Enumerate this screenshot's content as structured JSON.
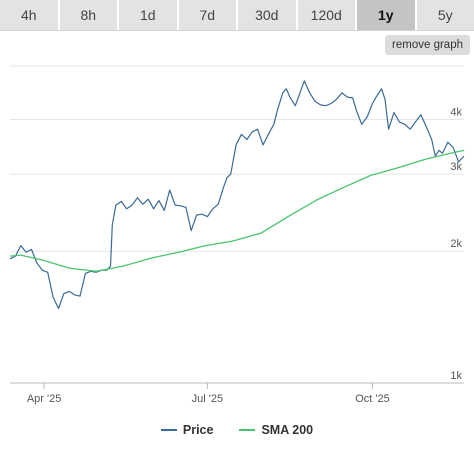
{
  "tabs": [
    {
      "label": "4h",
      "active": false
    },
    {
      "label": "8h",
      "active": false
    },
    {
      "label": "1d",
      "active": false
    },
    {
      "label": "7d",
      "active": false
    },
    {
      "label": "30d",
      "active": false
    },
    {
      "label": "120d",
      "active": false
    },
    {
      "label": "1y",
      "active": true
    },
    {
      "label": "5y",
      "active": false
    }
  ],
  "remove_graph_label": "remove graph",
  "chart_data": {
    "type": "line",
    "x_range": [
      "2025-03-13",
      "2025-11-21"
    ],
    "x_ticks": [
      {
        "date": "2025-04-01",
        "label": "Apr '25"
      },
      {
        "date": "2025-07-01",
        "label": "Jul '25"
      },
      {
        "date": "2025-10-01",
        "label": "Oct '25"
      }
    ],
    "y_axis": {
      "scale": "log",
      "range": [
        1000,
        5300
      ]
    },
    "y_ticks": [
      {
        "value": 1000,
        "label": "1k"
      },
      {
        "value": 2000,
        "label": "2k"
      },
      {
        "value": 3000,
        "label": "3k"
      },
      {
        "value": 4000,
        "label": "4k"
      }
    ],
    "grid": true,
    "legend_position": "bottom",
    "series": [
      {
        "name": "Price",
        "color": "#3b6a96",
        "points": [
          [
            "2025-03-13",
            1920
          ],
          [
            "2025-03-16",
            1950
          ],
          [
            "2025-03-19",
            2060
          ],
          [
            "2025-03-22",
            1990
          ],
          [
            "2025-03-25",
            2020
          ],
          [
            "2025-03-28",
            1880
          ],
          [
            "2025-03-31",
            1810
          ],
          [
            "2025-04-03",
            1790
          ],
          [
            "2025-04-06",
            1570
          ],
          [
            "2025-04-09",
            1480
          ],
          [
            "2025-04-12",
            1600
          ],
          [
            "2025-04-15",
            1620
          ],
          [
            "2025-04-18",
            1590
          ],
          [
            "2025-04-21",
            1580
          ],
          [
            "2025-04-24",
            1780
          ],
          [
            "2025-04-27",
            1800
          ],
          [
            "2025-04-30",
            1790
          ],
          [
            "2025-05-03",
            1810
          ],
          [
            "2025-05-06",
            1810
          ],
          [
            "2025-05-08",
            1850
          ],
          [
            "2025-05-09",
            2300
          ],
          [
            "2025-05-11",
            2550
          ],
          [
            "2025-05-14",
            2600
          ],
          [
            "2025-05-17",
            2500
          ],
          [
            "2025-05-20",
            2550
          ],
          [
            "2025-05-23",
            2650
          ],
          [
            "2025-05-26",
            2560
          ],
          [
            "2025-05-29",
            2630
          ],
          [
            "2025-06-01",
            2500
          ],
          [
            "2025-06-04",
            2610
          ],
          [
            "2025-06-07",
            2480
          ],
          [
            "2025-06-10",
            2760
          ],
          [
            "2025-06-13",
            2550
          ],
          [
            "2025-06-16",
            2540
          ],
          [
            "2025-06-19",
            2520
          ],
          [
            "2025-06-22",
            2230
          ],
          [
            "2025-06-25",
            2420
          ],
          [
            "2025-06-28",
            2430
          ],
          [
            "2025-07-01",
            2400
          ],
          [
            "2025-07-04",
            2500
          ],
          [
            "2025-07-07",
            2560
          ],
          [
            "2025-07-10",
            2800
          ],
          [
            "2025-07-12",
            2950
          ],
          [
            "2025-07-14",
            3000
          ],
          [
            "2025-07-17",
            3500
          ],
          [
            "2025-07-20",
            3700
          ],
          [
            "2025-07-23",
            3600
          ],
          [
            "2025-07-26",
            3750
          ],
          [
            "2025-07-29",
            3800
          ],
          [
            "2025-08-01",
            3500
          ],
          [
            "2025-08-04",
            3700
          ],
          [
            "2025-08-07",
            3900
          ],
          [
            "2025-08-09",
            4200
          ],
          [
            "2025-08-12",
            4600
          ],
          [
            "2025-08-14",
            4700
          ],
          [
            "2025-08-16",
            4500
          ],
          [
            "2025-08-19",
            4300
          ],
          [
            "2025-08-22",
            4650
          ],
          [
            "2025-08-24",
            4900
          ],
          [
            "2025-08-27",
            4600
          ],
          [
            "2025-08-30",
            4400
          ],
          [
            "2025-09-02",
            4320
          ],
          [
            "2025-09-05",
            4300
          ],
          [
            "2025-09-08",
            4350
          ],
          [
            "2025-09-11",
            4450
          ],
          [
            "2025-09-14",
            4600
          ],
          [
            "2025-09-17",
            4500
          ],
          [
            "2025-09-20",
            4480
          ],
          [
            "2025-09-22",
            4200
          ],
          [
            "2025-09-25",
            3900
          ],
          [
            "2025-09-28",
            4050
          ],
          [
            "2025-10-01",
            4350
          ],
          [
            "2025-10-03",
            4500
          ],
          [
            "2025-10-06",
            4700
          ],
          [
            "2025-10-08",
            4450
          ],
          [
            "2025-10-10",
            3800
          ],
          [
            "2025-10-13",
            4150
          ],
          [
            "2025-10-16",
            3950
          ],
          [
            "2025-10-19",
            3900
          ],
          [
            "2025-10-22",
            3800
          ],
          [
            "2025-10-25",
            3950
          ],
          [
            "2025-10-28",
            4100
          ],
          [
            "2025-10-31",
            3850
          ],
          [
            "2025-11-03",
            3600
          ],
          [
            "2025-11-05",
            3300
          ],
          [
            "2025-11-07",
            3400
          ],
          [
            "2025-11-09",
            3350
          ],
          [
            "2025-11-12",
            3550
          ],
          [
            "2025-11-15",
            3450
          ],
          [
            "2025-11-18",
            3200
          ],
          [
            "2025-11-21",
            3300
          ]
        ]
      },
      {
        "name": "SMA 200",
        "color": "#49c46f",
        "points": [
          [
            "2025-03-13",
            1950
          ],
          [
            "2025-03-19",
            1960
          ],
          [
            "2025-03-31",
            1910
          ],
          [
            "2025-04-15",
            1830
          ],
          [
            "2025-04-30",
            1800
          ],
          [
            "2025-05-15",
            1850
          ],
          [
            "2025-05-31",
            1930
          ],
          [
            "2025-06-15",
            1990
          ],
          [
            "2025-06-30",
            2060
          ],
          [
            "2025-07-15",
            2110
          ],
          [
            "2025-07-31",
            2200
          ],
          [
            "2025-08-15",
            2400
          ],
          [
            "2025-08-31",
            2620
          ],
          [
            "2025-09-15",
            2800
          ],
          [
            "2025-09-30",
            2980
          ],
          [
            "2025-10-15",
            3100
          ],
          [
            "2025-10-31",
            3250
          ],
          [
            "2025-11-15",
            3360
          ],
          [
            "2025-11-21",
            3400
          ]
        ]
      }
    ]
  }
}
